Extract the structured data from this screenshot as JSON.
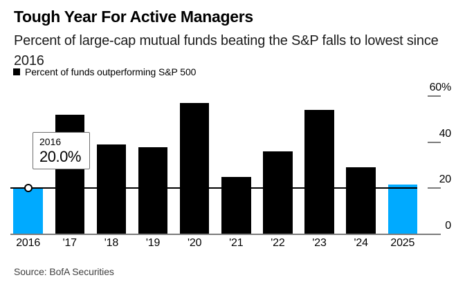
{
  "header": {
    "title": "Tough Year For Active Managers",
    "subtitle_line1": "Percent of large-cap mutual funds beating the S&P falls to lowest since",
    "subtitle_line2": "2016"
  },
  "legend": {
    "label": "Percent of funds outperforming S&P 500"
  },
  "tooltip": {
    "year": "2016",
    "value": "20.0%"
  },
  "source": "Source: BofA Securities",
  "colors": {
    "bar": "#000000",
    "highlight_bar": "#00aaff",
    "axis": "#7a7a7a",
    "reference_line": "#000000"
  },
  "chart_data": {
    "type": "bar",
    "title": "Tough Year For Active Managers",
    "subtitle": "Percent of large-cap mutual funds beating the S&P falls to lowest since 2016",
    "categories": [
      "2016",
      "'17",
      "'18",
      "'19",
      "'20",
      "'21",
      "'22",
      "'23",
      "'24",
      "2025"
    ],
    "values": [
      20.0,
      52,
      39,
      38,
      57,
      25,
      36,
      54,
      29,
      21.5
    ],
    "highlighted_indices": [
      0,
      9
    ],
    "xlabel": "",
    "ylabel": "",
    "ylim": [
      0,
      60
    ],
    "y_ticks": [
      0,
      20,
      40,
      60
    ],
    "y_tick_labels": [
      "0",
      "20",
      "40",
      "60%"
    ],
    "grid": false,
    "legend_position": "top-left",
    "legend_entries": [
      "Percent of funds outperforming S&P 500"
    ],
    "reference_line_value": 20.0,
    "hover_marker": {
      "category": "2016",
      "value": 20.0
    }
  }
}
